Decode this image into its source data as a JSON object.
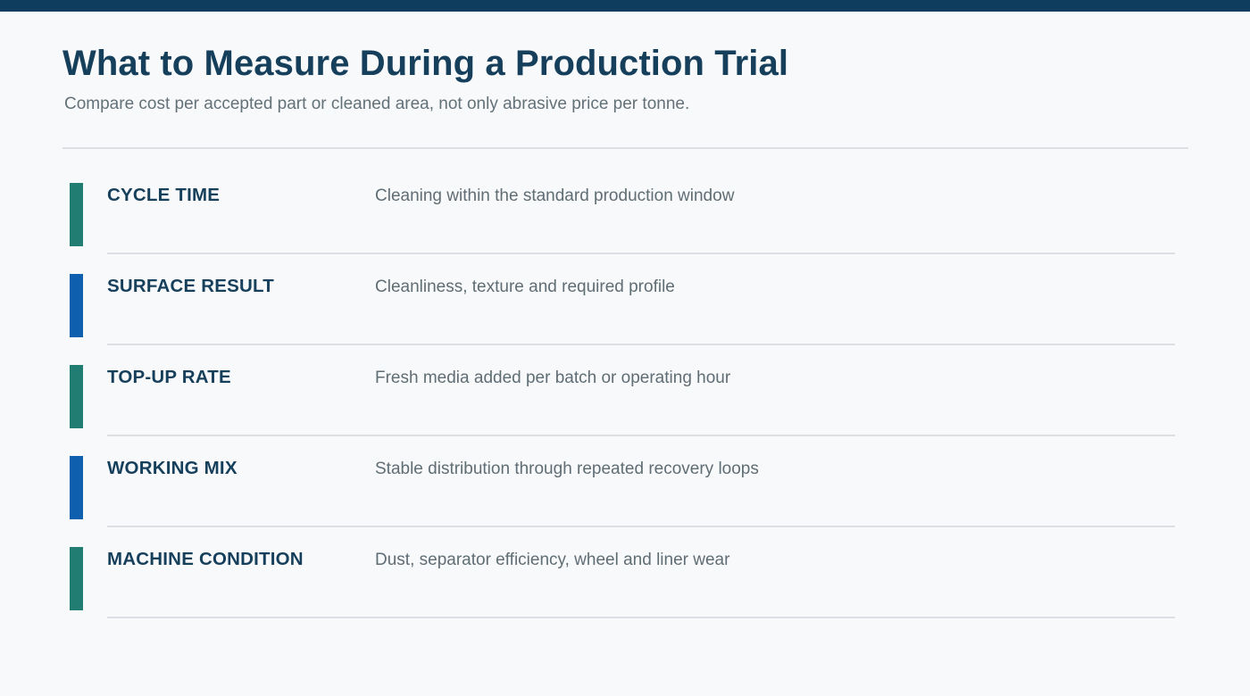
{
  "header": {
    "title": "What to Measure During a Production Trial",
    "subtitle": "Compare cost per accepted part or cleaned area, not only abrasive price per tonne."
  },
  "colors": {
    "top_bar": "#0f3d5e",
    "title": "#163f5c",
    "label": "#163f5c",
    "accent_teal": "#217c72",
    "accent_blue": "#0e5fae"
  },
  "metrics": [
    {
      "label": "CYCLE TIME",
      "description": "Cleaning within the standard production window",
      "accent": "teal"
    },
    {
      "label": "SURFACE RESULT",
      "description": "Cleanliness, texture and required profile",
      "accent": "blue"
    },
    {
      "label": "TOP-UP RATE",
      "description": "Fresh media added per batch or operating hour",
      "accent": "teal"
    },
    {
      "label": "WORKING MIX",
      "description": "Stable distribution through repeated recovery loops",
      "accent": "blue"
    },
    {
      "label": "MACHINE CONDITION",
      "description": "Dust, separator efficiency, wheel and liner wear",
      "accent": "teal"
    }
  ]
}
